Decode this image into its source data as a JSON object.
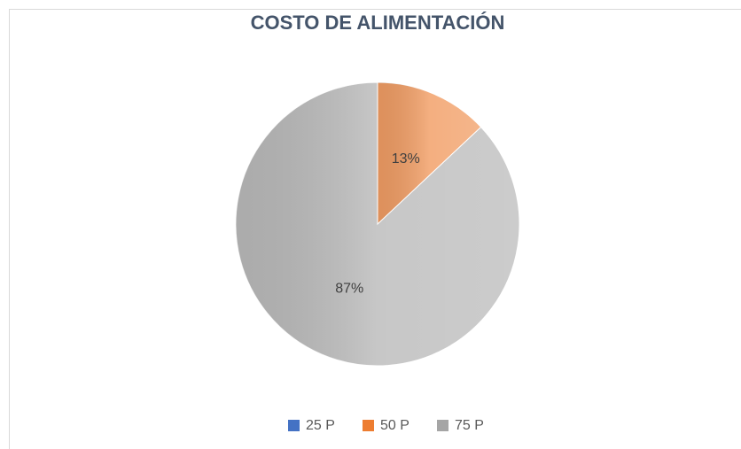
{
  "chart_data": {
    "type": "pie",
    "title": "COSTO DE ALIMENTACIÓN",
    "categories": [
      "25 P",
      "50 P",
      "75 P"
    ],
    "values": [
      0,
      13,
      87
    ],
    "value_labels": [
      null,
      "13%",
      "87%"
    ],
    "colors": [
      "#4472c4",
      "#ed7d31",
      "#a5a5a5"
    ],
    "legend": "bottom"
  }
}
